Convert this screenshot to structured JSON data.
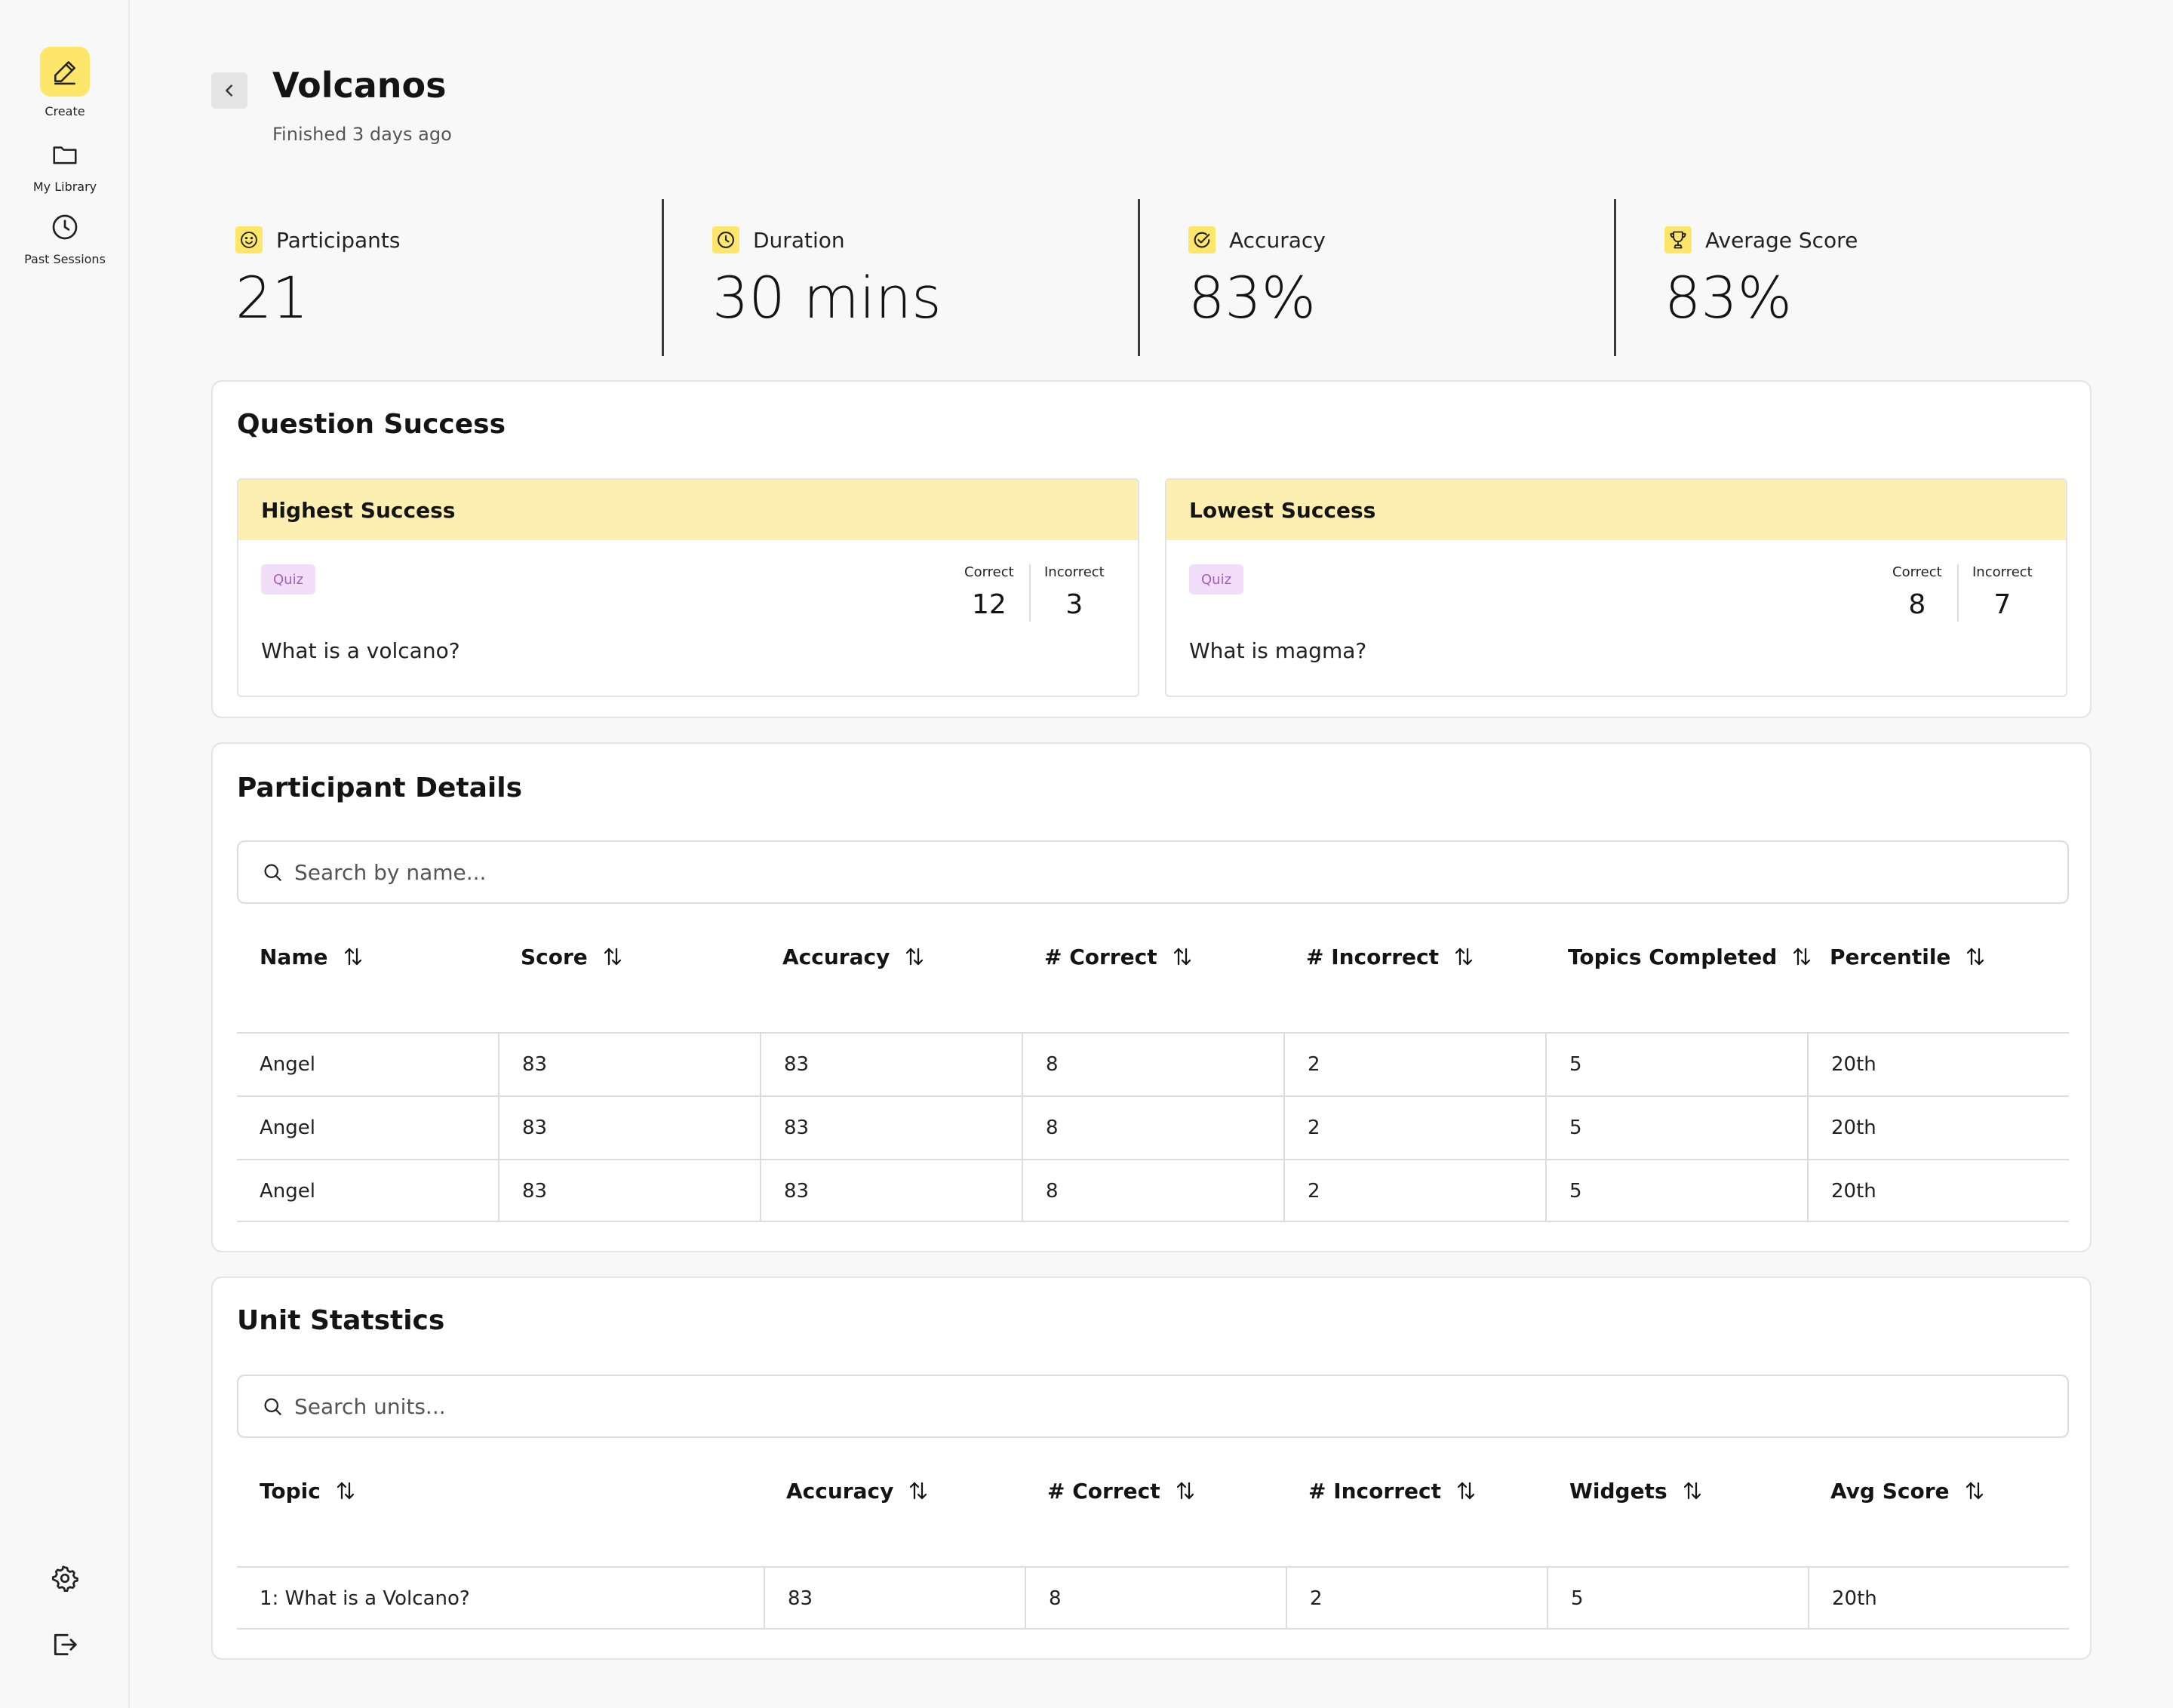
{
  "sidebar": {
    "items": [
      {
        "label": "Create",
        "icon": "pencil-icon",
        "active": true
      },
      {
        "label": "My Library",
        "icon": "folder-icon"
      },
      {
        "label": "Past Sessions",
        "icon": "clock-icon"
      }
    ],
    "bottom": [
      {
        "icon": "gear-icon"
      },
      {
        "icon": "logout-icon"
      }
    ]
  },
  "header": {
    "title": "Volcanos",
    "subtitle": "Finished 3 days ago"
  },
  "stats": [
    {
      "label": "Participants",
      "value": "21",
      "icon": "smiley-icon"
    },
    {
      "label": "Duration",
      "value": "30 mins",
      "icon": "clock-icon"
    },
    {
      "label": "Accuracy",
      "value": "83%",
      "icon": "check-circle-icon"
    },
    {
      "label": "Average Score",
      "value": "83%",
      "icon": "trophy-icon"
    }
  ],
  "question_success": {
    "title": "Question Success",
    "highest": {
      "heading": "Highest Success",
      "tag": "Quiz",
      "question": "What is a volcano?",
      "correct_label": "Correct",
      "correct": "12",
      "incorrect_label": "Incorrect",
      "incorrect": "3"
    },
    "lowest": {
      "heading": "Lowest Success",
      "tag": "Quiz",
      "question": "What is magma?",
      "correct_label": "Correct",
      "correct": "8",
      "incorrect_label": "Incorrect",
      "incorrect": "7"
    }
  },
  "participants": {
    "title": "Participant Details",
    "search_placeholder": "Search by name...",
    "columns": [
      "Name",
      "Score",
      "Accuracy",
      "# Correct",
      "# Incorrect",
      "Topics Completed",
      "Percentile"
    ],
    "rows": [
      [
        "Angel",
        "83",
        "83",
        "8",
        "2",
        "5",
        "20th"
      ],
      [
        "Angel",
        "83",
        "83",
        "8",
        "2",
        "5",
        "20th"
      ],
      [
        "Angel",
        "83",
        "83",
        "8",
        "2",
        "5",
        "20th"
      ]
    ]
  },
  "units": {
    "title": "Unit Statstics",
    "search_placeholder": "Search units...",
    "columns": [
      "Topic",
      "Accuracy",
      "# Correct",
      "# Incorrect",
      "Widgets",
      "Avg Score"
    ],
    "rows": [
      [
        "1: What is a Volcano?",
        "83",
        "8",
        "2",
        "5",
        "20th"
      ]
    ]
  }
}
